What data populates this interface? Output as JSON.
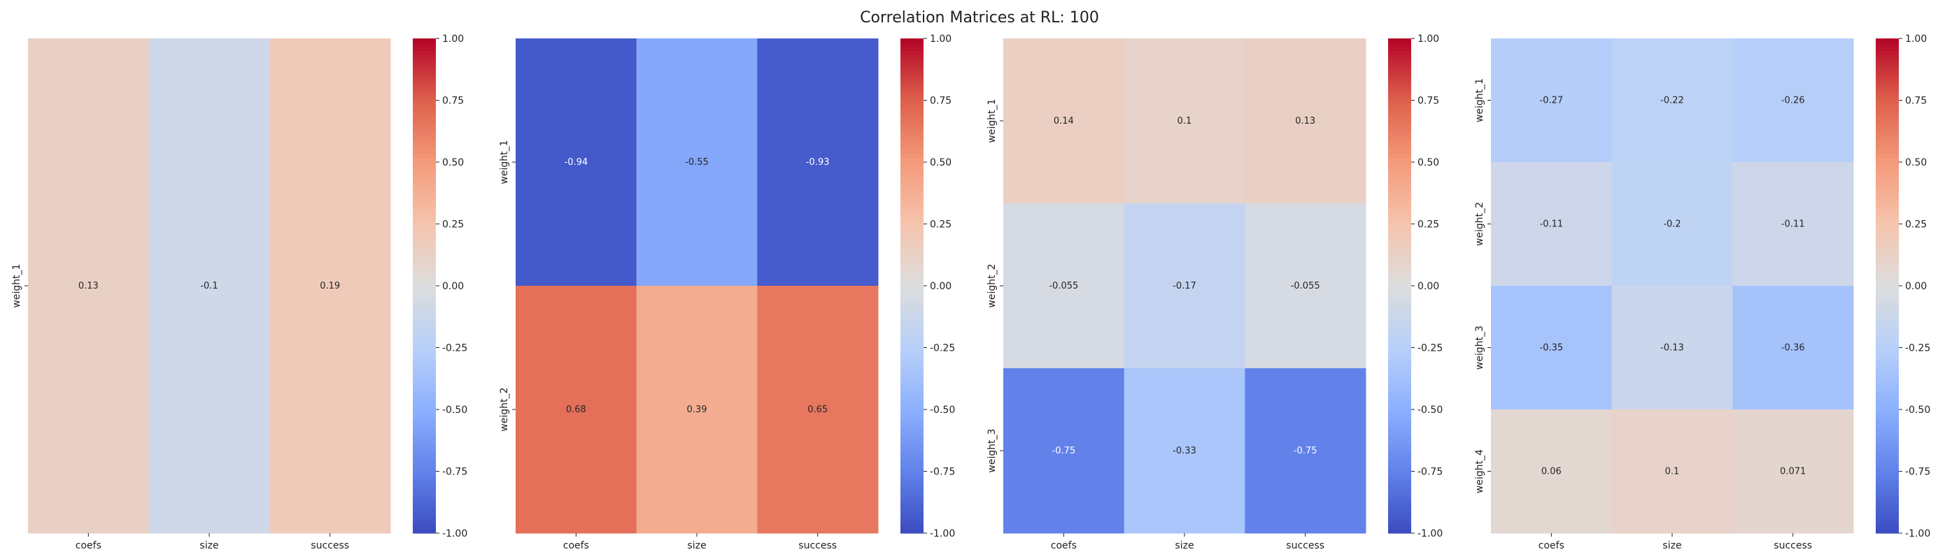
{
  "figure": {
    "title": "Correlation Matrices at RL: 100"
  },
  "chart_data": [
    {
      "type": "heatmap",
      "columns": [
        "coefs",
        "size",
        "success"
      ],
      "rows": [
        "weight_1"
      ],
      "values": [
        [
          0.13,
          -0.1,
          0.19
        ]
      ],
      "labels": [
        [
          "0.13",
          "-0.1",
          "0.19"
        ]
      ],
      "colormap": "coolwarm",
      "vmin": -1,
      "vmax": 1,
      "colorbar_ticks": [
        "1.00",
        "0.75",
        "0.50",
        "0.25",
        "0.00",
        "-0.25",
        "-0.50",
        "-0.75",
        "-1.00"
      ]
    },
    {
      "type": "heatmap",
      "columns": [
        "coefs",
        "size",
        "success"
      ],
      "rows": [
        "weight_1",
        "weight_2"
      ],
      "values": [
        [
          -0.94,
          -0.55,
          -0.93
        ],
        [
          0.68,
          0.39,
          0.65
        ]
      ],
      "labels": [
        [
          "-0.94",
          "-0.55",
          "-0.93"
        ],
        [
          "0.68",
          "0.39",
          "0.65"
        ]
      ],
      "colormap": "coolwarm",
      "vmin": -1,
      "vmax": 1,
      "colorbar_ticks": [
        "1.00",
        "0.75",
        "0.50",
        "0.25",
        "0.00",
        "-0.25",
        "-0.50",
        "-0.75",
        "-1.00"
      ]
    },
    {
      "type": "heatmap",
      "columns": [
        "coefs",
        "size",
        "success"
      ],
      "rows": [
        "weight_1",
        "weight_2",
        "weight_3"
      ],
      "values": [
        [
          0.14,
          0.1,
          0.13
        ],
        [
          -0.055,
          -0.17,
          -0.055
        ],
        [
          -0.75,
          -0.33,
          -0.75
        ]
      ],
      "labels": [
        [
          "0.14",
          "0.1",
          "0.13"
        ],
        [
          "-0.055",
          "-0.17",
          "-0.055"
        ],
        [
          "-0.75",
          "-0.33",
          "-0.75"
        ]
      ],
      "colormap": "coolwarm",
      "vmin": -1,
      "vmax": 1,
      "colorbar_ticks": [
        "1.00",
        "0.75",
        "0.50",
        "0.25",
        "0.00",
        "-0.25",
        "-0.50",
        "-0.75",
        "-1.00"
      ]
    },
    {
      "type": "heatmap",
      "columns": [
        "coefs",
        "size",
        "success"
      ],
      "rows": [
        "weight_1",
        "weight_2",
        "weight_3",
        "weight_4"
      ],
      "values": [
        [
          -0.27,
          -0.22,
          -0.26
        ],
        [
          -0.11,
          -0.2,
          -0.11
        ],
        [
          -0.35,
          -0.13,
          -0.36
        ],
        [
          0.06,
          0.1,
          0.071
        ]
      ],
      "labels": [
        [
          "-0.27",
          "-0.22",
          "-0.26"
        ],
        [
          "-0.11",
          "-0.2",
          "-0.11"
        ],
        [
          "-0.35",
          "-0.13",
          "-0.36"
        ],
        [
          "0.06",
          "0.1",
          "0.071"
        ]
      ],
      "colormap": "coolwarm",
      "vmin": -1,
      "vmax": 1,
      "colorbar_ticks": [
        "1.00",
        "0.75",
        "0.50",
        "0.25",
        "0.00",
        "-0.25",
        "-0.50",
        "-0.75",
        "-1.00"
      ]
    }
  ]
}
